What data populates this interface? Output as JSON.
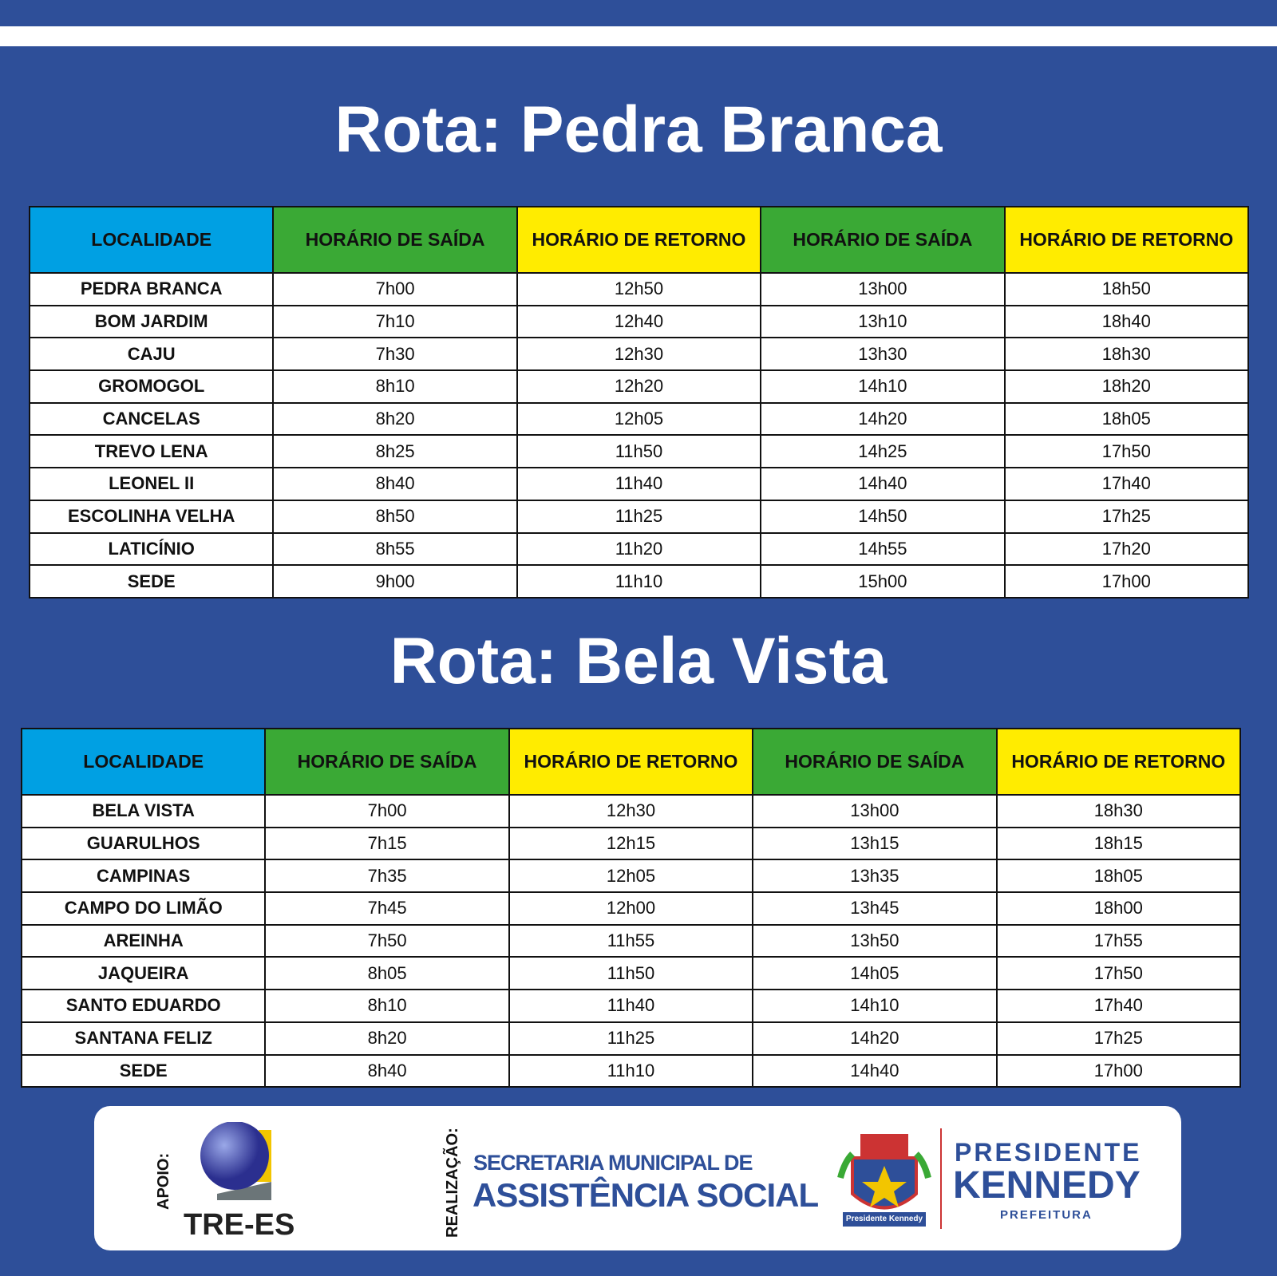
{
  "routes": [
    {
      "title": "Rota: Pedra Branca",
      "headers": [
        "LOCALIDADE",
        "HORÁRIO DE SAÍDA",
        "HORÁRIO DE RETORNO",
        "HORÁRIO DE SAÍDA",
        "HORÁRIO DE RETORNO"
      ],
      "rows": [
        [
          "PEDRA BRANCA",
          "7h00",
          "12h50",
          "13h00",
          "18h50"
        ],
        [
          "BOM JARDIM",
          "7h10",
          "12h40",
          "13h10",
          "18h40"
        ],
        [
          "CAJU",
          "7h30",
          "12h30",
          "13h30",
          "18h30"
        ],
        [
          "GROMOGOL",
          "8h10",
          "12h20",
          "14h10",
          "18h20"
        ],
        [
          "CANCELAS",
          "8h20",
          "12h05",
          "14h20",
          "18h05"
        ],
        [
          "TREVO LENA",
          "8h25",
          "11h50",
          "14h25",
          "17h50"
        ],
        [
          "LEONEL II",
          "8h40",
          "11h40",
          "14h40",
          "17h40"
        ],
        [
          "ESCOLINHA VELHA",
          "8h50",
          "11h25",
          "14h50",
          "17h25"
        ],
        [
          "LATICÍNIO",
          "8h55",
          "11h20",
          "14h55",
          "17h20"
        ],
        [
          "SEDE",
          "9h00",
          "11h10",
          "15h00",
          "17h00"
        ]
      ]
    },
    {
      "title": "Rota: Bela Vista",
      "headers": [
        "LOCALIDADE",
        "HORÁRIO DE SAÍDA",
        "HORÁRIO DE RETORNO",
        "HORÁRIO DE SAÍDA",
        "HORÁRIO DE RETORNO"
      ],
      "rows": [
        [
          "BELA VISTA",
          "7h00",
          "12h30",
          "13h00",
          "18h30"
        ],
        [
          "GUARULHOS",
          "7h15",
          "12h15",
          "13h15",
          "18h15"
        ],
        [
          "CAMPINAS",
          "7h35",
          "12h05",
          "13h35",
          "18h05"
        ],
        [
          "CAMPO DO LIMÃO",
          "7h45",
          "12h00",
          "13h45",
          "18h00"
        ],
        [
          "AREINHA",
          "7h50",
          "11h55",
          "13h50",
          "17h55"
        ],
        [
          "JAQUEIRA",
          "8h05",
          "11h50",
          "14h05",
          "17h50"
        ],
        [
          "SANTO EDUARDO",
          "8h10",
          "11h40",
          "14h10",
          "17h40"
        ],
        [
          "SANTANA FELIZ",
          "8h20",
          "11h25",
          "14h20",
          "17h25"
        ],
        [
          "SEDE",
          "8h40",
          "11h10",
          "14h40",
          "17h00"
        ]
      ]
    }
  ],
  "footer": {
    "apoio": "APOIO:",
    "tre_es": "TRE-ES",
    "realizacao": "REALIZAÇÃO:",
    "secretaria_line1": "SECRETARIA MUNICIPAL DE",
    "secretaria_line2": "ASSISTÊNCIA SOCIAL",
    "crest_text": "Presidente Kennedy",
    "brand_line1": "PRESIDENTE",
    "brand_line2": "KENNEDY",
    "brand_line3": "PREFEITURA"
  }
}
